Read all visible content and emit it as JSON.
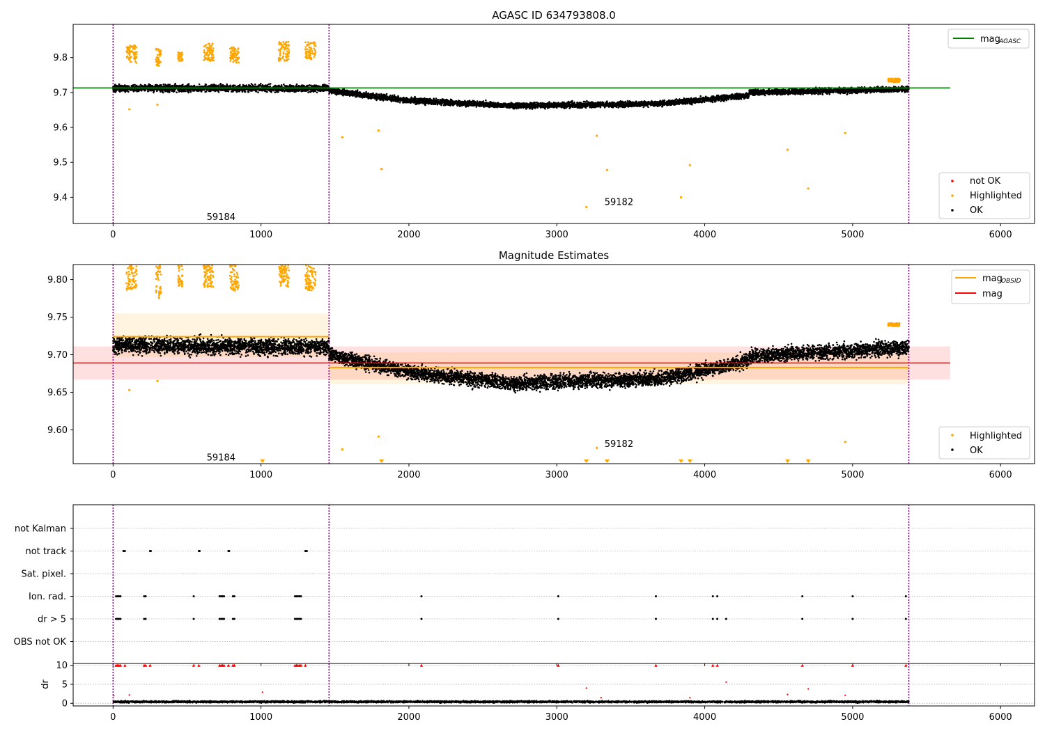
{
  "chart_data": [
    {
      "type": "scatter",
      "title": "AGASC ID 634793808.0",
      "xlim": [
        -270,
        6230
      ],
      "ylim": [
        9.325,
        9.895
      ],
      "xticks": [
        0,
        1000,
        2000,
        3000,
        4000,
        5000,
        6000
      ],
      "yticks": [
        9.4,
        9.5,
        9.6,
        9.7,
        9.8
      ],
      "vlines": [
        0,
        1460,
        5380
      ],
      "hline": {
        "name": "mag",
        "subscript": "AGASC",
        "value": 9.713,
        "x": [
          -270,
          5660
        ],
        "color": "#008000"
      },
      "annotations": [
        {
          "text": "59184",
          "x": 730,
          "y": 9.345
        },
        {
          "text": "59182",
          "x": 3420,
          "y": 9.388
        }
      ],
      "ok_segments": [
        {
          "x": [
            0,
            1460
          ],
          "y0": 9.712,
          "y1": 9.712,
          "spread": 0.012
        },
        {
          "x": [
            1460,
            2000
          ],
          "y0": 9.705,
          "y1": 9.677,
          "spread": 0.01
        },
        {
          "x": [
            2000,
            2700
          ],
          "y0": 9.677,
          "y1": 9.662,
          "spread": 0.01
        },
        {
          "x": [
            2700,
            3700
          ],
          "y0": 9.662,
          "y1": 9.668,
          "spread": 0.01
        },
        {
          "x": [
            3700,
            4300
          ],
          "y0": 9.668,
          "y1": 9.692,
          "spread": 0.01
        },
        {
          "x": [
            4300,
            5380
          ],
          "y0": 9.7,
          "y1": 9.71,
          "spread": 0.01
        }
      ],
      "highlight_clusters": [
        {
          "x": [
            90,
            160
          ],
          "y": [
            9.785,
            9.835
          ]
        },
        {
          "x": [
            290,
            325
          ],
          "y": [
            9.775,
            9.825
          ]
        },
        {
          "x": [
            440,
            470
          ],
          "y": [
            9.79,
            9.815
          ]
        },
        {
          "x": [
            610,
            680
          ],
          "y": [
            9.79,
            9.84
          ]
        },
        {
          "x": [
            790,
            850
          ],
          "y": [
            9.785,
            9.83
          ]
        },
        {
          "x": [
            1120,
            1190
          ],
          "y": [
            9.79,
            9.845
          ]
        },
        {
          "x": [
            1300,
            1370
          ],
          "y": [
            9.795,
            9.845
          ]
        },
        {
          "x": [
            5240,
            5320
          ],
          "y": [
            9.73,
            9.74
          ]
        }
      ],
      "highlight_points": [
        [
          110,
          9.652
        ],
        [
          300,
          9.665
        ],
        [
          1550,
          9.572
        ],
        [
          1795,
          9.591
        ],
        [
          1815,
          9.481
        ],
        [
          3200,
          9.372
        ],
        [
          3270,
          9.576
        ],
        [
          3340,
          9.478
        ],
        [
          3840,
          9.4
        ],
        [
          3900,
          9.492
        ],
        [
          4560,
          9.536
        ],
        [
          4700,
          9.425
        ],
        [
          4950,
          9.584
        ]
      ],
      "legend_top": [
        {
          "label": "mag",
          "subscript": "AGASC",
          "color": "#008000"
        }
      ],
      "legend_bottom": [
        {
          "label": "not OK",
          "color": "#ff0000"
        },
        {
          "label": "Highlighted",
          "color": "#ffa500"
        },
        {
          "label": "OK",
          "color": "#000000"
        }
      ]
    },
    {
      "type": "scatter",
      "title": "Magnitude Estimates",
      "xlim": [
        -270,
        6230
      ],
      "ylim": [
        9.555,
        9.82
      ],
      "xticks": [
        0,
        1000,
        2000,
        3000,
        4000,
        5000,
        6000
      ],
      "yticks": [
        9.6,
        9.65,
        9.7,
        9.75,
        9.8
      ],
      "ytick_labels": [
        "9.60",
        "9.65",
        "9.70",
        "9.75",
        "9.80"
      ],
      "vlines": [
        0,
        1460,
        5380
      ],
      "mag_line": {
        "name": "mag",
        "value": 9.689,
        "band": [
          9.667,
          9.711
        ],
        "x": [
          -270,
          5660
        ],
        "color": "#ff0000"
      },
      "obsid_segments": [
        {
          "x": [
            0,
            1460
          ],
          "value": 9.724,
          "band": [
            9.697,
            9.755
          ]
        },
        {
          "x": [
            1460,
            5380
          ],
          "value": 9.683,
          "band": [
            9.661,
            9.703
          ]
        }
      ],
      "annotations": [
        {
          "text": "59184",
          "x": 730,
          "y": 9.564
        },
        {
          "text": "59182",
          "x": 3420,
          "y": 9.582
        }
      ],
      "ok_segments": [
        {
          "x": [
            0,
            1460
          ],
          "y0": 9.713,
          "y1": 9.71,
          "spread": 0.014
        },
        {
          "x": [
            1460,
            2000
          ],
          "y0": 9.7,
          "y1": 9.677,
          "spread": 0.012
        },
        {
          "x": [
            2000,
            2700
          ],
          "y0": 9.677,
          "y1": 9.662,
          "spread": 0.012
        },
        {
          "x": [
            2700,
            3700
          ],
          "y0": 9.662,
          "y1": 9.668,
          "spread": 0.012
        },
        {
          "x": [
            3700,
            4300
          ],
          "y0": 9.668,
          "y1": 9.692,
          "spread": 0.012
        },
        {
          "x": [
            4300,
            5380
          ],
          "y0": 9.698,
          "y1": 9.71,
          "spread": 0.012
        }
      ],
      "highlight_clusters": [
        {
          "x": [
            90,
            160
          ],
          "y": [
            9.785,
            9.82
          ]
        },
        {
          "x": [
            290,
            325
          ],
          "y": [
            9.775,
            9.82
          ]
        },
        {
          "x": [
            440,
            470
          ],
          "y": [
            9.79,
            9.82
          ]
        },
        {
          "x": [
            610,
            680
          ],
          "y": [
            9.79,
            9.82
          ]
        },
        {
          "x": [
            790,
            850
          ],
          "y": [
            9.785,
            9.82
          ]
        },
        {
          "x": [
            1120,
            1190
          ],
          "y": [
            9.79,
            9.82
          ]
        },
        {
          "x": [
            1300,
            1370
          ],
          "y": [
            9.785,
            9.82
          ]
        },
        {
          "x": [
            5240,
            5320
          ],
          "y": [
            9.738,
            9.742
          ]
        }
      ],
      "highlight_points": [
        [
          110,
          9.653
        ],
        [
          300,
          9.665
        ],
        [
          1550,
          9.574
        ],
        [
          1795,
          9.591
        ],
        [
          3270,
          9.576
        ],
        [
          4950,
          9.584
        ]
      ],
      "clipped_markers_x": [
        1010,
        1815,
        3200,
        3340,
        3840,
        3900,
        4560,
        4700
      ],
      "legend_top": [
        {
          "label": "mag",
          "subscript": "OBSID",
          "color": "#ffa500"
        },
        {
          "label": "mag",
          "subscript": "",
          "color": "#ff0000"
        }
      ],
      "legend_bottom": [
        {
          "label": "Highlighted",
          "color": "#ffa500"
        },
        {
          "label": "OK",
          "color": "#000000"
        }
      ]
    },
    {
      "type": "scatter",
      "xlim": [
        -270,
        6230
      ],
      "xticks": [
        0,
        1000,
        2000,
        3000,
        4000,
        5000,
        6000
      ],
      "vlines": [
        0,
        1460,
        5380
      ],
      "flag_rows": [
        "not Kalman",
        "not track",
        "Sat. pixel.",
        "Ion. rad.",
        "dr > 5",
        "OBS not OK"
      ],
      "flag_points": {
        "not track": [
          70,
          80,
          250,
          255,
          580,
          585,
          780,
          785,
          1300,
          1310
        ],
        "Ion. rad.": [
          20,
          30,
          40,
          50,
          210,
          220,
          545,
          720,
          730,
          740,
          750,
          810,
          820,
          1230,
          1240,
          1250,
          1260,
          1270,
          2085,
          3010,
          3670,
          4055,
          4085,
          4660,
          5000,
          5360
        ],
        "dr > 5": [
          20,
          30,
          40,
          50,
          210,
          220,
          545,
          720,
          730,
          740,
          750,
          810,
          820,
          1230,
          1240,
          1250,
          1260,
          1270,
          2085,
          3010,
          3670,
          4055,
          4085,
          4145,
          4660,
          5000,
          5360
        ]
      },
      "dr": {
        "ylabel": "dr",
        "ylim": [
          -0.7,
          10.5
        ],
        "yticks": [
          0,
          5,
          10
        ],
        "baseline": {
          "x": [
            0,
            5380
          ],
          "mean": 0.4,
          "spread": 0.25
        },
        "capped_x": [
          20,
          30,
          40,
          50,
          80,
          210,
          220,
          250,
          545,
          580,
          720,
          730,
          740,
          750,
          780,
          810,
          820,
          1230,
          1240,
          1250,
          1260,
          1270,
          1300,
          2085,
          3010,
          3670,
          4055,
          4085,
          4660,
          5000,
          5360
        ],
        "outliers": [
          [
            1010,
            2.9
          ],
          [
            3200,
            4.0
          ],
          [
            4145,
            5.6
          ],
          [
            4700,
            3.8
          ],
          [
            110,
            2.2
          ],
          [
            5,
            2.0
          ],
          [
            4560,
            2.3
          ],
          [
            4950,
            2.1
          ],
          [
            3300,
            1.5
          ],
          [
            3900,
            1.5
          ]
        ]
      }
    }
  ]
}
